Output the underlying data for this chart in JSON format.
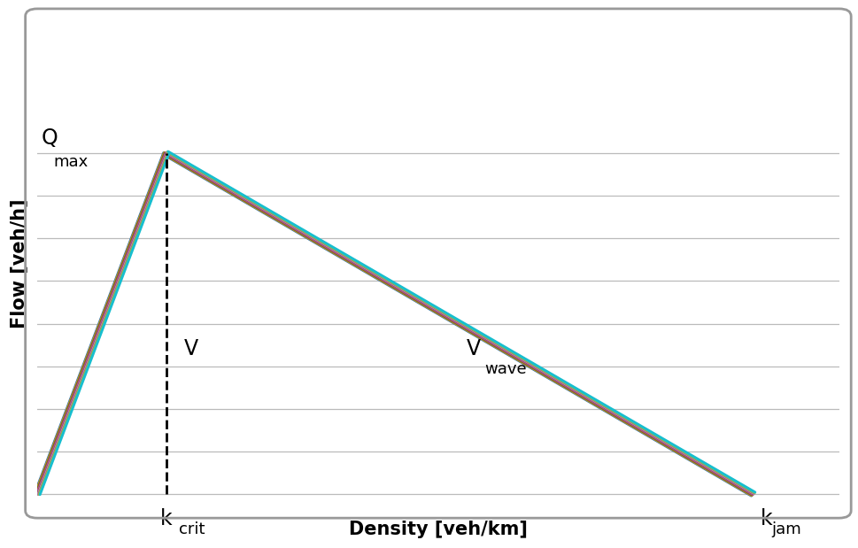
{
  "title": "",
  "xlabel": "Density [veh/km]",
  "ylabel": "Flow [veh/h]",
  "k_crit": 0.18,
  "k_jam": 1.0,
  "q_max": 0.82,
  "xlim": [
    0,
    1.12
  ],
  "ylim": [
    -0.04,
    1.15
  ],
  "label_qmax": "Q",
  "label_qmax_sub": "max",
  "label_v": "V",
  "label_vwave": "V",
  "label_vwave_sub": "wave",
  "label_kcrit": "k",
  "label_kcrit_sub": "crit",
  "label_kjam": "k",
  "label_kjam_sub": "jam",
  "colors": [
    "#1f77b4",
    "#ff7f0e",
    "#2ca02c",
    "#d62728",
    "#9467bd",
    "#8c564b",
    "#e377c2",
    "#7f7f7f",
    "#bcbd22",
    "#17becf"
  ],
  "background_color": "#ffffff",
  "grid_color": "#bbbbbb",
  "line_lw": 2.2,
  "dashed_color": "#000000",
  "xlabel_fontsize": 15,
  "ylabel_fontsize": 15,
  "annotation_fontsize": 17,
  "sub_fontsize": 13
}
